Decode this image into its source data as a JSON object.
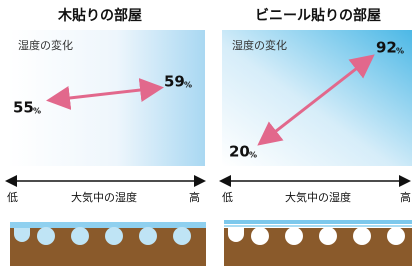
{
  "panels": [
    {
      "title": "木貼りの部屋",
      "caption": "湿度の変化",
      "start": {
        "value": 55,
        "unit": "%"
      },
      "end": {
        "value": 59,
        "unit": "%"
      },
      "axis": {
        "low": "低",
        "label": "大気中の湿度",
        "high": "高"
      }
    },
    {
      "title": "ビニール貼りの部屋",
      "caption": "湿度の変化",
      "start": {
        "value": 20,
        "unit": "%"
      },
      "end": {
        "value": 92,
        "unit": "%"
      },
      "axis": {
        "low": "低",
        "label": "大気中の湿度",
        "high": "高"
      }
    }
  ]
}
